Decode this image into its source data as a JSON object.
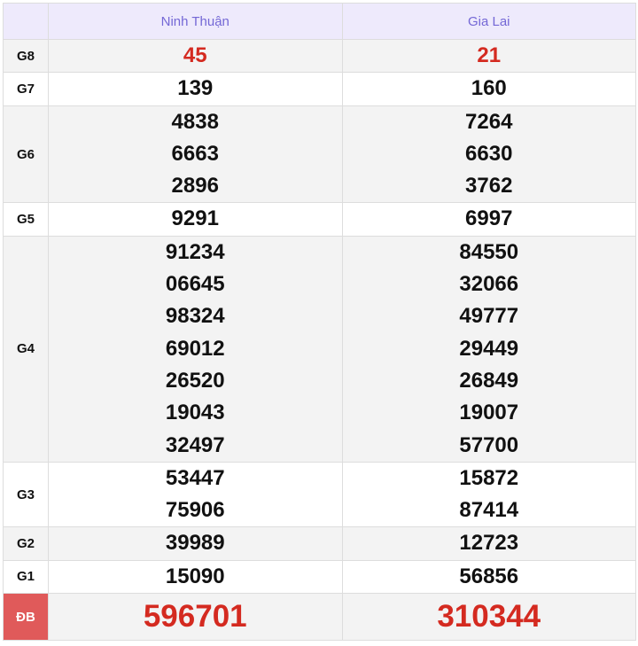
{
  "provinces": [
    "Ninh Thuận",
    "Gia Lai"
  ],
  "prizes": [
    {
      "label": "G8",
      "values": [
        [
          "45"
        ],
        [
          "21"
        ]
      ],
      "highlight": true
    },
    {
      "label": "G7",
      "values": [
        [
          "139"
        ],
        [
          "160"
        ]
      ]
    },
    {
      "label": "G6",
      "values": [
        [
          "4838",
          "6663",
          "2896"
        ],
        [
          "7264",
          "6630",
          "3762"
        ]
      ]
    },
    {
      "label": "G5",
      "values": [
        [
          "9291"
        ],
        [
          "6997"
        ]
      ]
    },
    {
      "label": "G4",
      "values": [
        [
          "91234",
          "06645",
          "98324",
          "69012",
          "26520",
          "19043",
          "32497"
        ],
        [
          "84550",
          "32066",
          "49777",
          "29449",
          "26849",
          "19007",
          "57700"
        ]
      ]
    },
    {
      "label": "G3",
      "values": [
        [
          "53447",
          "75906"
        ],
        [
          "15872",
          "87414"
        ]
      ]
    },
    {
      "label": "G2",
      "values": [
        [
          "39989"
        ],
        [
          "12723"
        ]
      ]
    },
    {
      "label": "G1",
      "values": [
        [
          "15090"
        ],
        [
          "56856"
        ]
      ]
    },
    {
      "label": "ĐB",
      "values": [
        [
          "596701"
        ],
        [
          "310344"
        ]
      ],
      "special": true
    }
  ],
  "colors": {
    "header_bg": "#eeeafc",
    "header_text": "#7468d6",
    "highlight": "#d42a20",
    "special_label_bg": "#e05a5a"
  }
}
